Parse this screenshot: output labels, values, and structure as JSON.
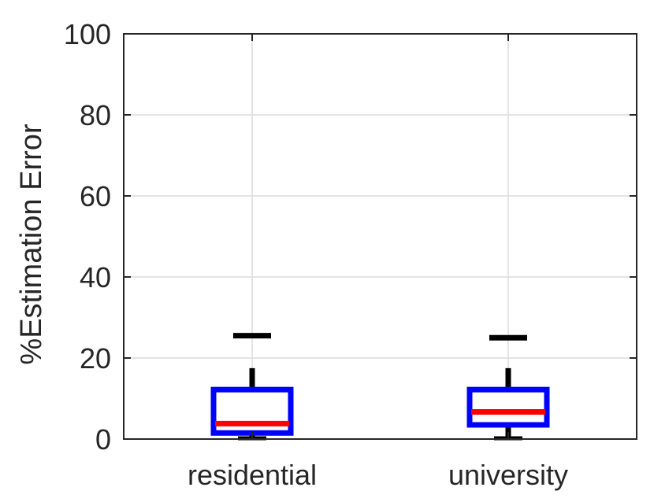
{
  "chart_data": {
    "type": "boxplot",
    "title": "",
    "xlabel": "",
    "ylabel": "%Estimation Error",
    "ylim": [
      0,
      100
    ],
    "yticks": [
      0,
      20,
      40,
      60,
      80,
      100
    ],
    "categories": [
      "residential",
      "university"
    ],
    "grid": true,
    "boxes": [
      {
        "category": "residential",
        "whisker_low": 0,
        "q1": 1.5,
        "median": 3.8,
        "q3": 12.2,
        "whisker_high": 17.5,
        "outlier": 25.5
      },
      {
        "category": "university",
        "whisker_low": 0,
        "q1": 3.5,
        "median": 6.7,
        "q3": 12.2,
        "whisker_high": 17.5,
        "outlier": 25.0
      }
    ],
    "colors": {
      "box": "#0000ff",
      "median": "#ff0000",
      "whisker": "#000000",
      "grid": "#dcdcdc",
      "axis": "#262626"
    }
  }
}
